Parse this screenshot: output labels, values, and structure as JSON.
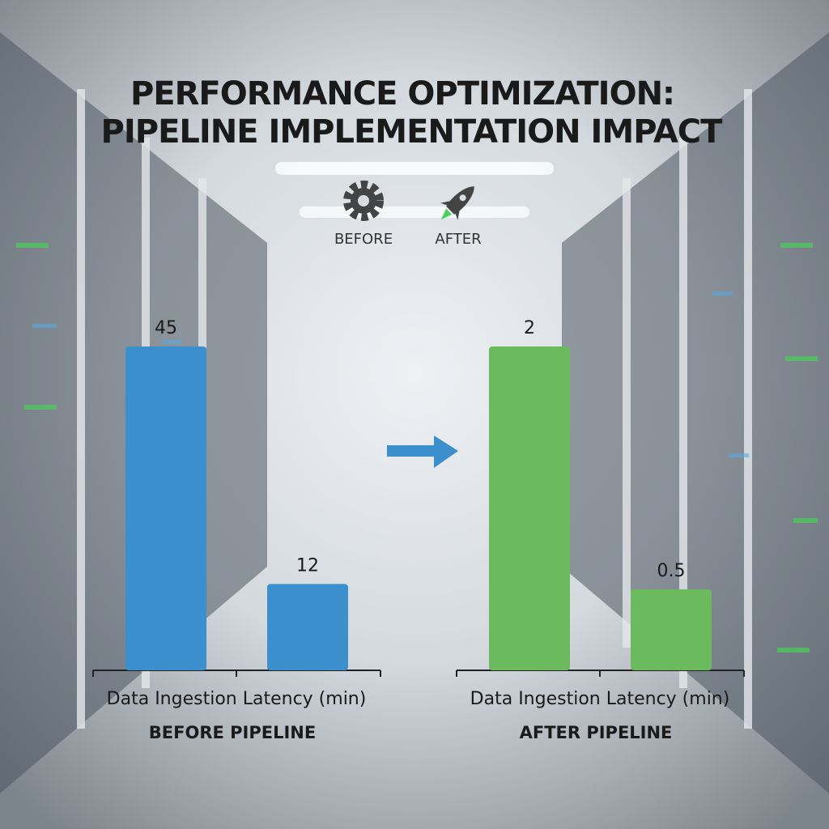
{
  "title": [
    "PERFORMANCE OPTIMIZATION:",
    "PIPELINE IMPLEMENTATION IMPACT"
  ],
  "legend": [
    "BEFORE",
    "AFTER"
  ],
  "chart_data": [
    {
      "type": "bar",
      "x_label": "Data Ingestion Latency (min)",
      "subtitle": "BEFORE PIPELINE",
      "values": [
        45,
        12
      ],
      "color": "#3a8fcc"
    },
    {
      "type": "bar",
      "x_label": "Data Ingestion Latency (min)",
      "subtitle": "AFTER PIPELINE",
      "values": [
        2,
        0.5
      ],
      "color": "#6bbb5e"
    }
  ]
}
